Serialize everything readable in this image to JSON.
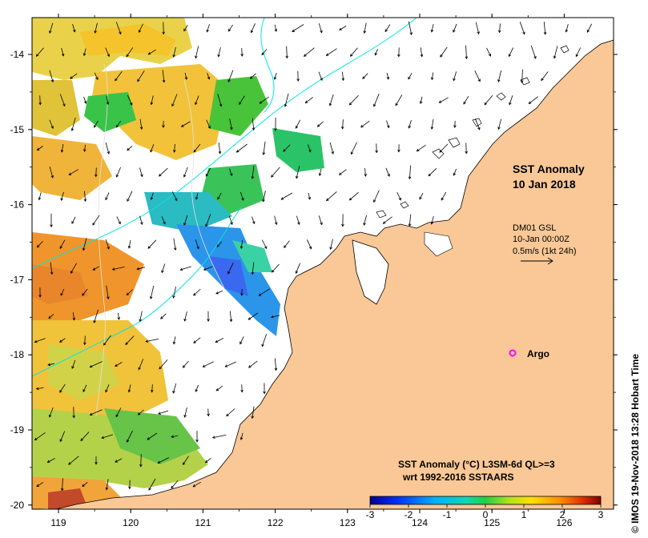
{
  "map": {
    "title_line1": "SST Anomaly",
    "title_line2": "10 Jan 2018",
    "current_source": "DM01 GSL",
    "current_time": "10-Jan 00:00Z",
    "current_scale": "0.5m/s (1kt 24h)",
    "argo_label": "Argo",
    "colorbar_title": "SST Anomaly (°C) L3SM-6d QL>=3",
    "colorbar_subtitle": "wrt 1992-2016 SSTAARS",
    "credit": "© IMOS 19-Nov-2018 13:28 Hobart Time",
    "lon_ticks": [
      "119",
      "120",
      "121",
      "122",
      "123",
      "124",
      "125",
      "126"
    ],
    "lat_ticks": [
      "-14",
      "-15",
      "-16",
      "-17",
      "-18",
      "-19",
      "-20"
    ],
    "colorbar_ticks": [
      "-3",
      "-2",
      "-1",
      "0",
      "1",
      "2",
      "3"
    ],
    "colors": {
      "land": "#f9c896",
      "argo": "#ff00ff",
      "bathy": "#00e5e5"
    }
  }
}
